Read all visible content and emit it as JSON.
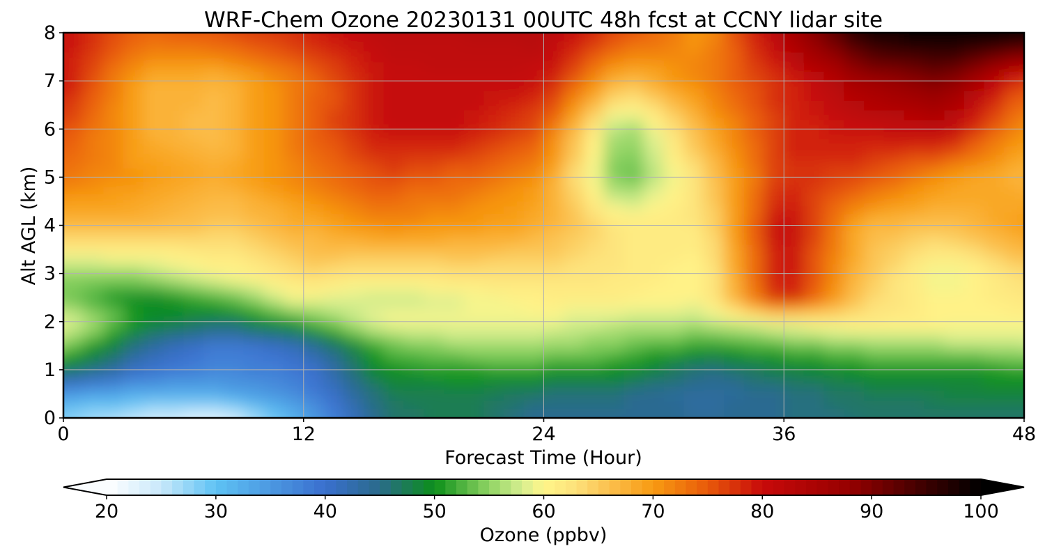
{
  "chart_data": {
    "type": "heatmap",
    "title": "WRF-Chem Ozone  20230131 00UTC 48h fcst at CCNY lidar site",
    "xlabel": "Forecast Time (Hour)",
    "ylabel": "Alt AGL (km)",
    "xlim": [
      0,
      48
    ],
    "ylim": [
      0,
      8
    ],
    "xticks": [
      0,
      12,
      24,
      36,
      48
    ],
    "yticks": [
      0,
      1,
      2,
      3,
      4,
      5,
      6,
      7,
      8
    ],
    "grid": true,
    "x": [
      0,
      4,
      8,
      12,
      16,
      20,
      24,
      28,
      32,
      36,
      40,
      44,
      48
    ],
    "y": [
      0,
      0.5,
      1,
      1.5,
      2,
      2.5,
      3,
      4,
      5,
      6,
      7,
      8
    ],
    "z": [
      [
        28,
        24,
        22,
        33,
        46,
        48,
        44,
        45,
        44,
        45,
        46,
        46,
        46
      ],
      [
        35,
        32,
        33,
        37,
        47,
        48,
        46,
        45,
        43,
        45,
        47,
        48,
        48
      ],
      [
        48,
        40,
        37,
        39,
        50,
        51,
        51,
        50,
        45,
        48,
        50,
        50,
        51
      ],
      [
        55,
        44,
        38,
        42,
        53,
        56,
        56,
        54,
        51,
        53,
        55,
        56,
        57
      ],
      [
        60,
        50,
        47,
        52,
        60,
        59,
        59,
        57,
        57,
        60,
        62,
        61,
        60
      ],
      [
        54,
        49,
        53,
        60,
        57,
        59,
        61,
        61,
        60,
        80,
        64,
        60,
        62
      ],
      [
        55,
        56,
        60,
        64,
        62,
        63,
        63,
        62,
        60,
        81,
        66,
        58,
        64
      ],
      [
        67,
        67,
        65,
        68,
        71,
        70,
        68,
        62,
        62,
        82,
        67,
        66,
        70
      ],
      [
        73,
        70,
        68,
        72,
        76,
        74,
        70,
        52,
        64,
        78,
        76,
        70,
        67
      ],
      [
        76,
        68,
        66,
        74,
        80,
        80,
        75,
        54,
        68,
        78,
        80,
        82,
        70
      ],
      [
        80,
        68,
        67,
        73,
        80,
        81,
        80,
        66,
        72,
        78,
        86,
        90,
        76
      ],
      [
        80,
        74,
        76,
        78,
        82,
        82,
        83,
        76,
        70,
        84,
        98,
        100,
        100
      ]
    ],
    "colorbar": {
      "label": "Ozone  (ppbv)",
      "min": 20,
      "max": 100,
      "ticks": [
        20,
        30,
        40,
        50,
        60,
        70,
        80,
        90,
        100
      ],
      "extend": "both",
      "levels": 80,
      "colormap_anchors": [
        [
          20,
          "#ffffff"
        ],
        [
          25,
          "#c8e8fa"
        ],
        [
          30,
          "#5ec2f4"
        ],
        [
          40,
          "#3a6fce"
        ],
        [
          45,
          "#2a6b8a"
        ],
        [
          50,
          "#0c8f1a"
        ],
        [
          55,
          "#8fd463"
        ],
        [
          58,
          "#d7ee91"
        ],
        [
          60,
          "#fff68a"
        ],
        [
          63,
          "#fde07a"
        ],
        [
          66,
          "#fbc04d"
        ],
        [
          70,
          "#f79a12"
        ],
        [
          75,
          "#e85a0a"
        ],
        [
          80,
          "#c80a0a"
        ],
        [
          88,
          "#960000"
        ],
        [
          95,
          "#3a0000"
        ],
        [
          100,
          "#000000"
        ]
      ]
    }
  }
}
